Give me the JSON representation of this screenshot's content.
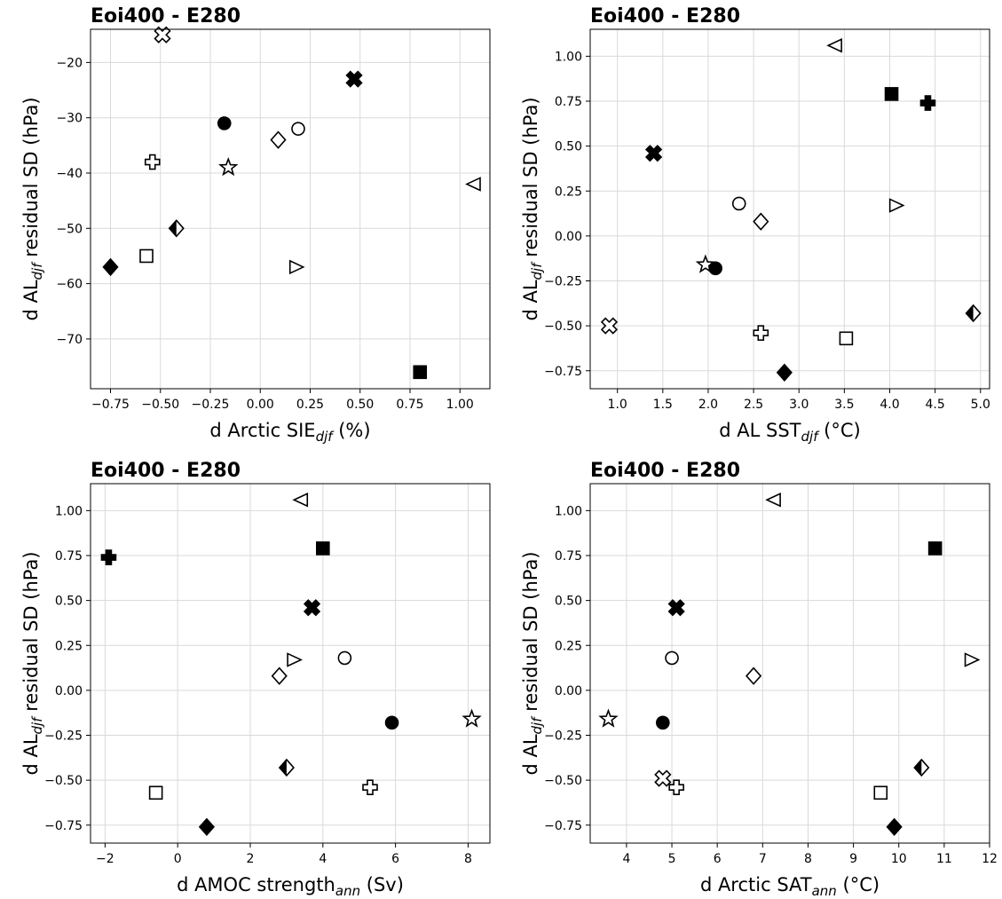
{
  "chart_data": [
    {
      "type": "scatter",
      "title": "Eoi400 - E280",
      "xlabel": {
        "pre": "d Arctic SIE",
        "sub": "djf",
        "post": " (%)"
      },
      "ylabel": {
        "pre": "d AL",
        "sub": "djf",
        "post": " residual SD (hPa)"
      },
      "xlim": [
        -0.85,
        1.15
      ],
      "ylim": [
        -79,
        -14
      ],
      "xticks": [
        -0.75,
        -0.5,
        -0.25,
        0.0,
        0.25,
        0.5,
        0.75,
        1.0
      ],
      "xticklabels": [
        "−0.75",
        "−0.50",
        "−0.25",
        "0.00",
        "0.25",
        "0.50",
        "0.75",
        "1.00"
      ],
      "yticks": [
        -70,
        -60,
        -50,
        -40,
        -30,
        -20
      ],
      "yticklabels": [
        "−70",
        "−60",
        "−50",
        "−40",
        "−30",
        "−20"
      ],
      "grid": true,
      "points": [
        {
          "marker": "x-open",
          "x": -0.49,
          "y": -15
        },
        {
          "marker": "x-filled",
          "x": 0.47,
          "y": -23
        },
        {
          "marker": "circle-filled",
          "x": -0.18,
          "y": -31
        },
        {
          "marker": "circle-open",
          "x": 0.19,
          "y": -32
        },
        {
          "marker": "diamond-open",
          "x": 0.09,
          "y": -34
        },
        {
          "marker": "plus-open",
          "x": -0.54,
          "y": -38
        },
        {
          "marker": "star-open",
          "x": -0.16,
          "y": -39
        },
        {
          "marker": "triangle-left-open",
          "x": 1.07,
          "y": -42
        },
        {
          "marker": "diamond-half",
          "x": -0.42,
          "y": -50
        },
        {
          "marker": "square-open",
          "x": -0.57,
          "y": -55
        },
        {
          "marker": "diamond-filled",
          "x": -0.75,
          "y": -57
        },
        {
          "marker": "triangle-right-open",
          "x": 0.18,
          "y": -57
        },
        {
          "marker": "square-filled",
          "x": 0.8,
          "y": -76
        }
      ]
    },
    {
      "type": "scatter",
      "title": "Eoi400 - E280",
      "xlabel": {
        "pre": "d AL SST",
        "sub": "djf",
        "post": " (°C)"
      },
      "ylabel": {
        "pre": "d AL",
        "sub": "djf",
        "post": " residual SD (hPa)"
      },
      "xlim": [
        0.7,
        5.1
      ],
      "ylim": [
        -0.85,
        1.15
      ],
      "xticks": [
        1.0,
        1.5,
        2.0,
        2.5,
        3.0,
        3.5,
        4.0,
        4.5,
        5.0
      ],
      "xticklabels": [
        "1.0",
        "1.5",
        "2.0",
        "2.5",
        "3.0",
        "3.5",
        "4.0",
        "4.5",
        "5.0"
      ],
      "yticks": [
        -0.75,
        -0.5,
        -0.25,
        0.0,
        0.25,
        0.5,
        0.75,
        1.0
      ],
      "yticklabels": [
        "−0.75",
        "−0.50",
        "−0.25",
        "0.00",
        "0.25",
        "0.50",
        "0.75",
        "1.00"
      ],
      "grid": true,
      "points": [
        {
          "marker": "triangle-left-open",
          "x": 3.4,
          "y": 1.06
        },
        {
          "marker": "square-filled",
          "x": 4.02,
          "y": 0.79
        },
        {
          "marker": "plus-filled",
          "x": 4.42,
          "y": 0.74
        },
        {
          "marker": "x-filled",
          "x": 1.4,
          "y": 0.46
        },
        {
          "marker": "circle-open",
          "x": 2.34,
          "y": 0.18
        },
        {
          "marker": "triangle-right-open",
          "x": 4.07,
          "y": 0.17
        },
        {
          "marker": "diamond-open",
          "x": 2.58,
          "y": 0.08
        },
        {
          "marker": "star-open",
          "x": 1.97,
          "y": -0.16
        },
        {
          "marker": "circle-filled",
          "x": 2.08,
          "y": -0.18
        },
        {
          "marker": "diamond-half",
          "x": 4.92,
          "y": -0.43
        },
        {
          "marker": "x-open",
          "x": 0.91,
          "y": -0.5
        },
        {
          "marker": "plus-open",
          "x": 2.58,
          "y": -0.54
        },
        {
          "marker": "square-open",
          "x": 3.52,
          "y": -0.57
        },
        {
          "marker": "diamond-filled",
          "x": 2.84,
          "y": -0.76
        }
      ]
    },
    {
      "type": "scatter",
      "title": "Eoi400 - E280",
      "xlabel": {
        "pre": "d AMOC strength",
        "sub": "ann",
        "post": " (Sv)"
      },
      "ylabel": {
        "pre": "d AL",
        "sub": "djf",
        "post": " residual SD (hPa)"
      },
      "xlim": [
        -2.4,
        8.6
      ],
      "ylim": [
        -0.85,
        1.15
      ],
      "xticks": [
        -2,
        0,
        2,
        4,
        6,
        8
      ],
      "xticklabels": [
        "−2",
        "0",
        "2",
        "4",
        "6",
        "8"
      ],
      "yticks": [
        -0.75,
        -0.5,
        -0.25,
        0.0,
        0.25,
        0.5,
        0.75,
        1.0
      ],
      "yticklabels": [
        "−0.75",
        "−0.50",
        "−0.25",
        "0.00",
        "0.25",
        "0.50",
        "0.75",
        "1.00"
      ],
      "grid": true,
      "points": [
        {
          "marker": "triangle-left-open",
          "x": 3.4,
          "y": 1.06
        },
        {
          "marker": "square-filled",
          "x": 4.0,
          "y": 0.79
        },
        {
          "marker": "plus-filled",
          "x": -1.9,
          "y": 0.74
        },
        {
          "marker": "x-filled",
          "x": 3.7,
          "y": 0.46
        },
        {
          "marker": "circle-open",
          "x": 4.6,
          "y": 0.18
        },
        {
          "marker": "triangle-right-open",
          "x": 3.2,
          "y": 0.17
        },
        {
          "marker": "diamond-open",
          "x": 2.8,
          "y": 0.08
        },
        {
          "marker": "star-open",
          "x": 8.1,
          "y": -0.16
        },
        {
          "marker": "circle-filled",
          "x": 5.9,
          "y": -0.18
        },
        {
          "marker": "diamond-half",
          "x": 3.0,
          "y": -0.43
        },
        {
          "marker": "plus-open",
          "x": 5.3,
          "y": -0.54
        },
        {
          "marker": "square-open",
          "x": -0.6,
          "y": -0.57
        },
        {
          "marker": "diamond-filled",
          "x": 0.8,
          "y": -0.76
        }
      ]
    },
    {
      "type": "scatter",
      "title": "Eoi400 - E280",
      "xlabel": {
        "pre": "d Arctic SAT",
        "sub": "ann",
        "post": " (°C)"
      },
      "ylabel": {
        "pre": "d AL",
        "sub": "djf",
        "post": " residual SD (hPa)"
      },
      "xlim": [
        3.2,
        12.0
      ],
      "ylim": [
        -0.85,
        1.15
      ],
      "xticks": [
        4,
        5,
        6,
        7,
        8,
        9,
        10,
        11,
        12
      ],
      "xticklabels": [
        "4",
        "5",
        "6",
        "7",
        "8",
        "9",
        "10",
        "11",
        "12"
      ],
      "yticks": [
        -0.75,
        -0.5,
        -0.25,
        0.0,
        0.25,
        0.5,
        0.75,
        1.0
      ],
      "yticklabels": [
        "−0.75",
        "−0.50",
        "−0.25",
        "0.00",
        "0.25",
        "0.50",
        "0.75",
        "1.00"
      ],
      "grid": true,
      "points": [
        {
          "marker": "triangle-left-open",
          "x": 7.25,
          "y": 1.06
        },
        {
          "marker": "square-filled",
          "x": 10.8,
          "y": 0.79
        },
        {
          "marker": "x-filled",
          "x": 5.1,
          "y": 0.46
        },
        {
          "marker": "circle-open",
          "x": 5.0,
          "y": 0.18
        },
        {
          "marker": "triangle-right-open",
          "x": 11.6,
          "y": 0.17
        },
        {
          "marker": "diamond-open",
          "x": 6.8,
          "y": 0.08
        },
        {
          "marker": "star-open",
          "x": 3.6,
          "y": -0.16
        },
        {
          "marker": "circle-filled",
          "x": 4.8,
          "y": -0.18
        },
        {
          "marker": "diamond-half",
          "x": 10.5,
          "y": -0.43
        },
        {
          "marker": "x-open",
          "x": 4.8,
          "y": -0.49
        },
        {
          "marker": "plus-open",
          "x": 5.1,
          "y": -0.54
        },
        {
          "marker": "square-open",
          "x": 9.6,
          "y": -0.57
        },
        {
          "marker": "diamond-filled",
          "x": 9.9,
          "y": -0.76
        }
      ]
    }
  ]
}
